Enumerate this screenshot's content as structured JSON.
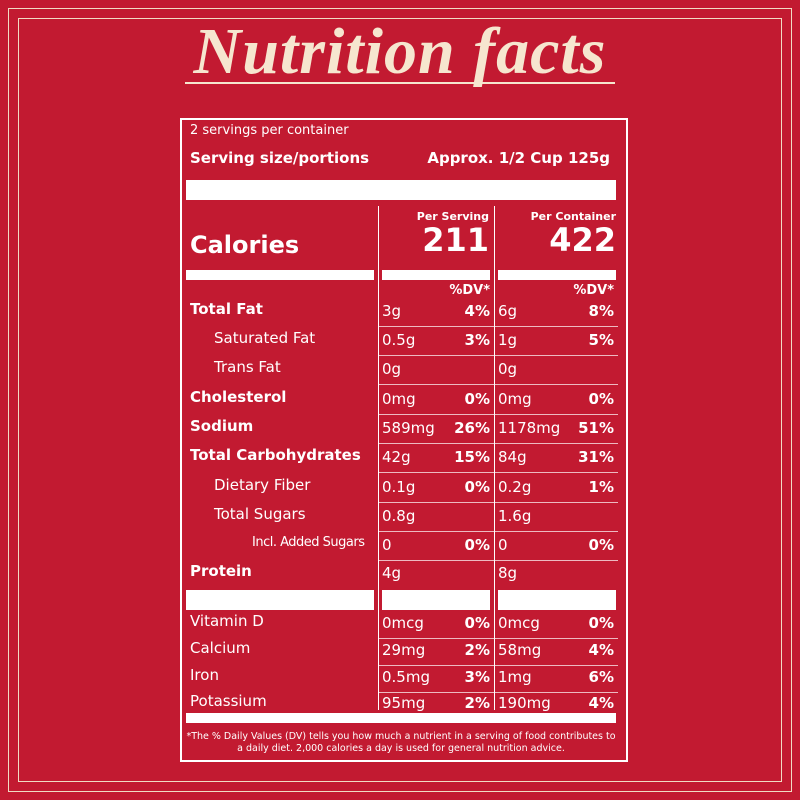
{
  "title": "Nutrition facts",
  "servings": "2 servings per container",
  "serving_size": {
    "label": "Serving size/portions",
    "value": "Approx. 1/2 Cup 125g"
  },
  "calories": {
    "label": "Calories",
    "per_serving_header": "Per Serving",
    "per_serving": 211,
    "per_container_header": "Per Container",
    "per_container": 422
  },
  "dv_header": "%DV*",
  "rows": [
    [
      "Total Fat",
      "3g",
      "4%",
      "6g",
      "8%"
    ],
    [
      "Saturated Fat",
      "0.5g",
      "3%",
      "1g",
      "5%"
    ],
    [
      "Trans Fat",
      "0g",
      null,
      "0g",
      null
    ],
    [
      "Cholesterol",
      "0mg",
      "0%",
      "0mg",
      "0%"
    ],
    [
      "Sodium",
      "589mg",
      "26%",
      "1178mg",
      "51%"
    ],
    [
      "Total Carbohydrates",
      "42g",
      "15%",
      "84g",
      "31%"
    ],
    [
      "Dietary Fiber",
      "0.1g",
      "0%",
      "0.2g",
      "1%"
    ],
    [
      "Total Sugars",
      "0.8g",
      null,
      "1.6g",
      null
    ],
    [
      "Incl. Added Sugars",
      "0",
      "0%",
      "0",
      "0%"
    ],
    [
      "Protein",
      "4g",
      null,
      "8g",
      null
    ],
    [
      "Vitamin D",
      "0mcg",
      "0%",
      "0mcg",
      "0%"
    ],
    [
      "Calcium",
      "29mg",
      "2%",
      "58mg",
      "4%"
    ],
    [
      "Iron",
      "0.5mg",
      "3%",
      "1mg",
      "6%"
    ],
    [
      "Potassium",
      "95mg",
      "2%",
      "190mg",
      "4%"
    ]
  ],
  "footnote": "*The % Daily Values (DV) tells you how much a nutrient in a serving of food contributes to a daily diet. 2,000 calories a day is used for general nutrition advice."
}
